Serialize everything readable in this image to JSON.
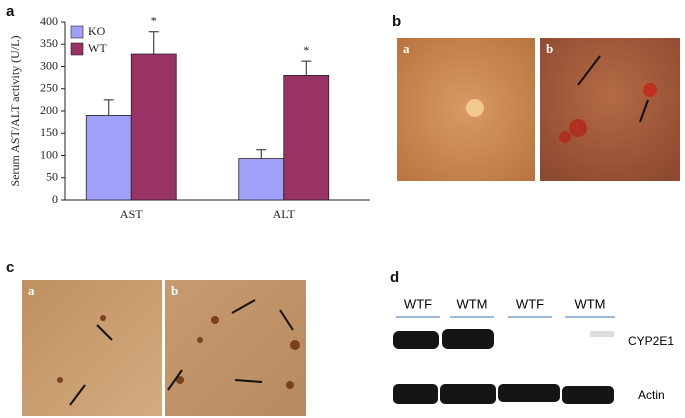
{
  "panel_labels": [
    "a",
    "b",
    "c",
    "d"
  ],
  "micrographs": {
    "b": [
      "a",
      "b"
    ],
    "c": [
      "a",
      "b"
    ]
  },
  "blot": {
    "lanes": [
      "WTF",
      "WTM",
      "WTF",
      "WTM"
    ],
    "bands": [
      "CYP2E1",
      "Actin"
    ]
  },
  "chart_data": {
    "type": "bar",
    "ylabel": "Serum AST/ALT activity (U/L)",
    "categories": [
      "AST",
      "ALT"
    ],
    "series": [
      {
        "name": "KO",
        "color": "#a0a0f8",
        "values": [
          190,
          93
        ],
        "errors": [
          35,
          20
        ]
      },
      {
        "name": "WT",
        "color": "#993366",
        "values": [
          328,
          280
        ],
        "errors": [
          50,
          32
        ],
        "annotations": [
          "*",
          "*"
        ]
      }
    ],
    "ylim": [
      0,
      400
    ],
    "yticks": [
      0,
      50,
      100,
      150,
      200,
      250,
      300,
      350,
      400
    ],
    "legend": "top-left"
  }
}
